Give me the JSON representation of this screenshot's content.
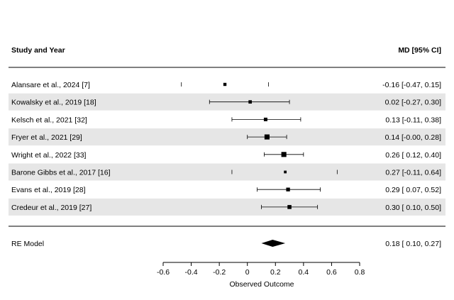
{
  "chart_data": {
    "type": "forest",
    "header_left": "Study and Year",
    "header_right": "MD [95% CI]",
    "xlabel": "Observed Outcome",
    "xlim": [
      -0.6,
      0.8
    ],
    "xticks": [
      "-0.6",
      "-0.4",
      "-0.2",
      "0",
      "0.2",
      "0.4",
      "0.6",
      "0.8"
    ],
    "studies": [
      {
        "label": "Alansare et al., 2024 [7]",
        "est": -0.16,
        "lo": -0.47,
        "hi": 0.15,
        "ci_text": "-0.16 [-0.47, 0.15]",
        "weight": 0.4,
        "show_ci": false,
        "shaded": false
      },
      {
        "label": "Kowalsky et al., 2019 [18]",
        "est": 0.02,
        "lo": -0.27,
        "hi": 0.3,
        "ci_text": "0.02 [-0.27, 0.30]",
        "weight": 0.45,
        "show_ci": true,
        "shaded": true
      },
      {
        "label": "Kelsch et al., 2021 [32]",
        "est": 0.13,
        "lo": -0.11,
        "hi": 0.38,
        "ci_text": "0.13 [-0.11, 0.38]",
        "weight": 0.5,
        "show_ci": true,
        "shaded": false
      },
      {
        "label": "Fryer et al., 2021 [29]",
        "est": 0.14,
        "lo": -0.0,
        "hi": 0.28,
        "ci_text": "0.14 [-0.00, 0.28]",
        "weight": 0.85,
        "show_ci": true,
        "shaded": true
      },
      {
        "label": "Wright et al., 2022 [33]",
        "est": 0.26,
        "lo": 0.12,
        "hi": 0.4,
        "ci_text": "0.26 [ 0.12, 0.40]",
        "weight": 0.85,
        "show_ci": true,
        "shaded": false
      },
      {
        "label": "Barone Gibbs et al., 2017 [16]",
        "est": 0.27,
        "lo": -0.11,
        "hi": 0.64,
        "ci_text": "0.27 [-0.11, 0.64]",
        "weight": 0.3,
        "show_ci": false,
        "shaded": true
      },
      {
        "label": "Evans et al., 2019 [28]",
        "est": 0.29,
        "lo": 0.07,
        "hi": 0.52,
        "ci_text": "0.29 [ 0.07, 0.52]",
        "weight": 0.55,
        "show_ci": true,
        "shaded": false
      },
      {
        "label": "Credeur et al., 2019 [27]",
        "est": 0.3,
        "lo": 0.1,
        "hi": 0.5,
        "ci_text": "0.30 [ 0.10, 0.50]",
        "weight": 0.6,
        "show_ci": true,
        "shaded": true
      }
    ],
    "summary": {
      "label": "RE Model",
      "est": 0.18,
      "lo": 0.1,
      "hi": 0.27,
      "ci_text": "0.18 [ 0.10, 0.27]"
    },
    "colors": {
      "shade": "#e6e6e6",
      "marker": "#000000",
      "line": "#000000"
    }
  }
}
